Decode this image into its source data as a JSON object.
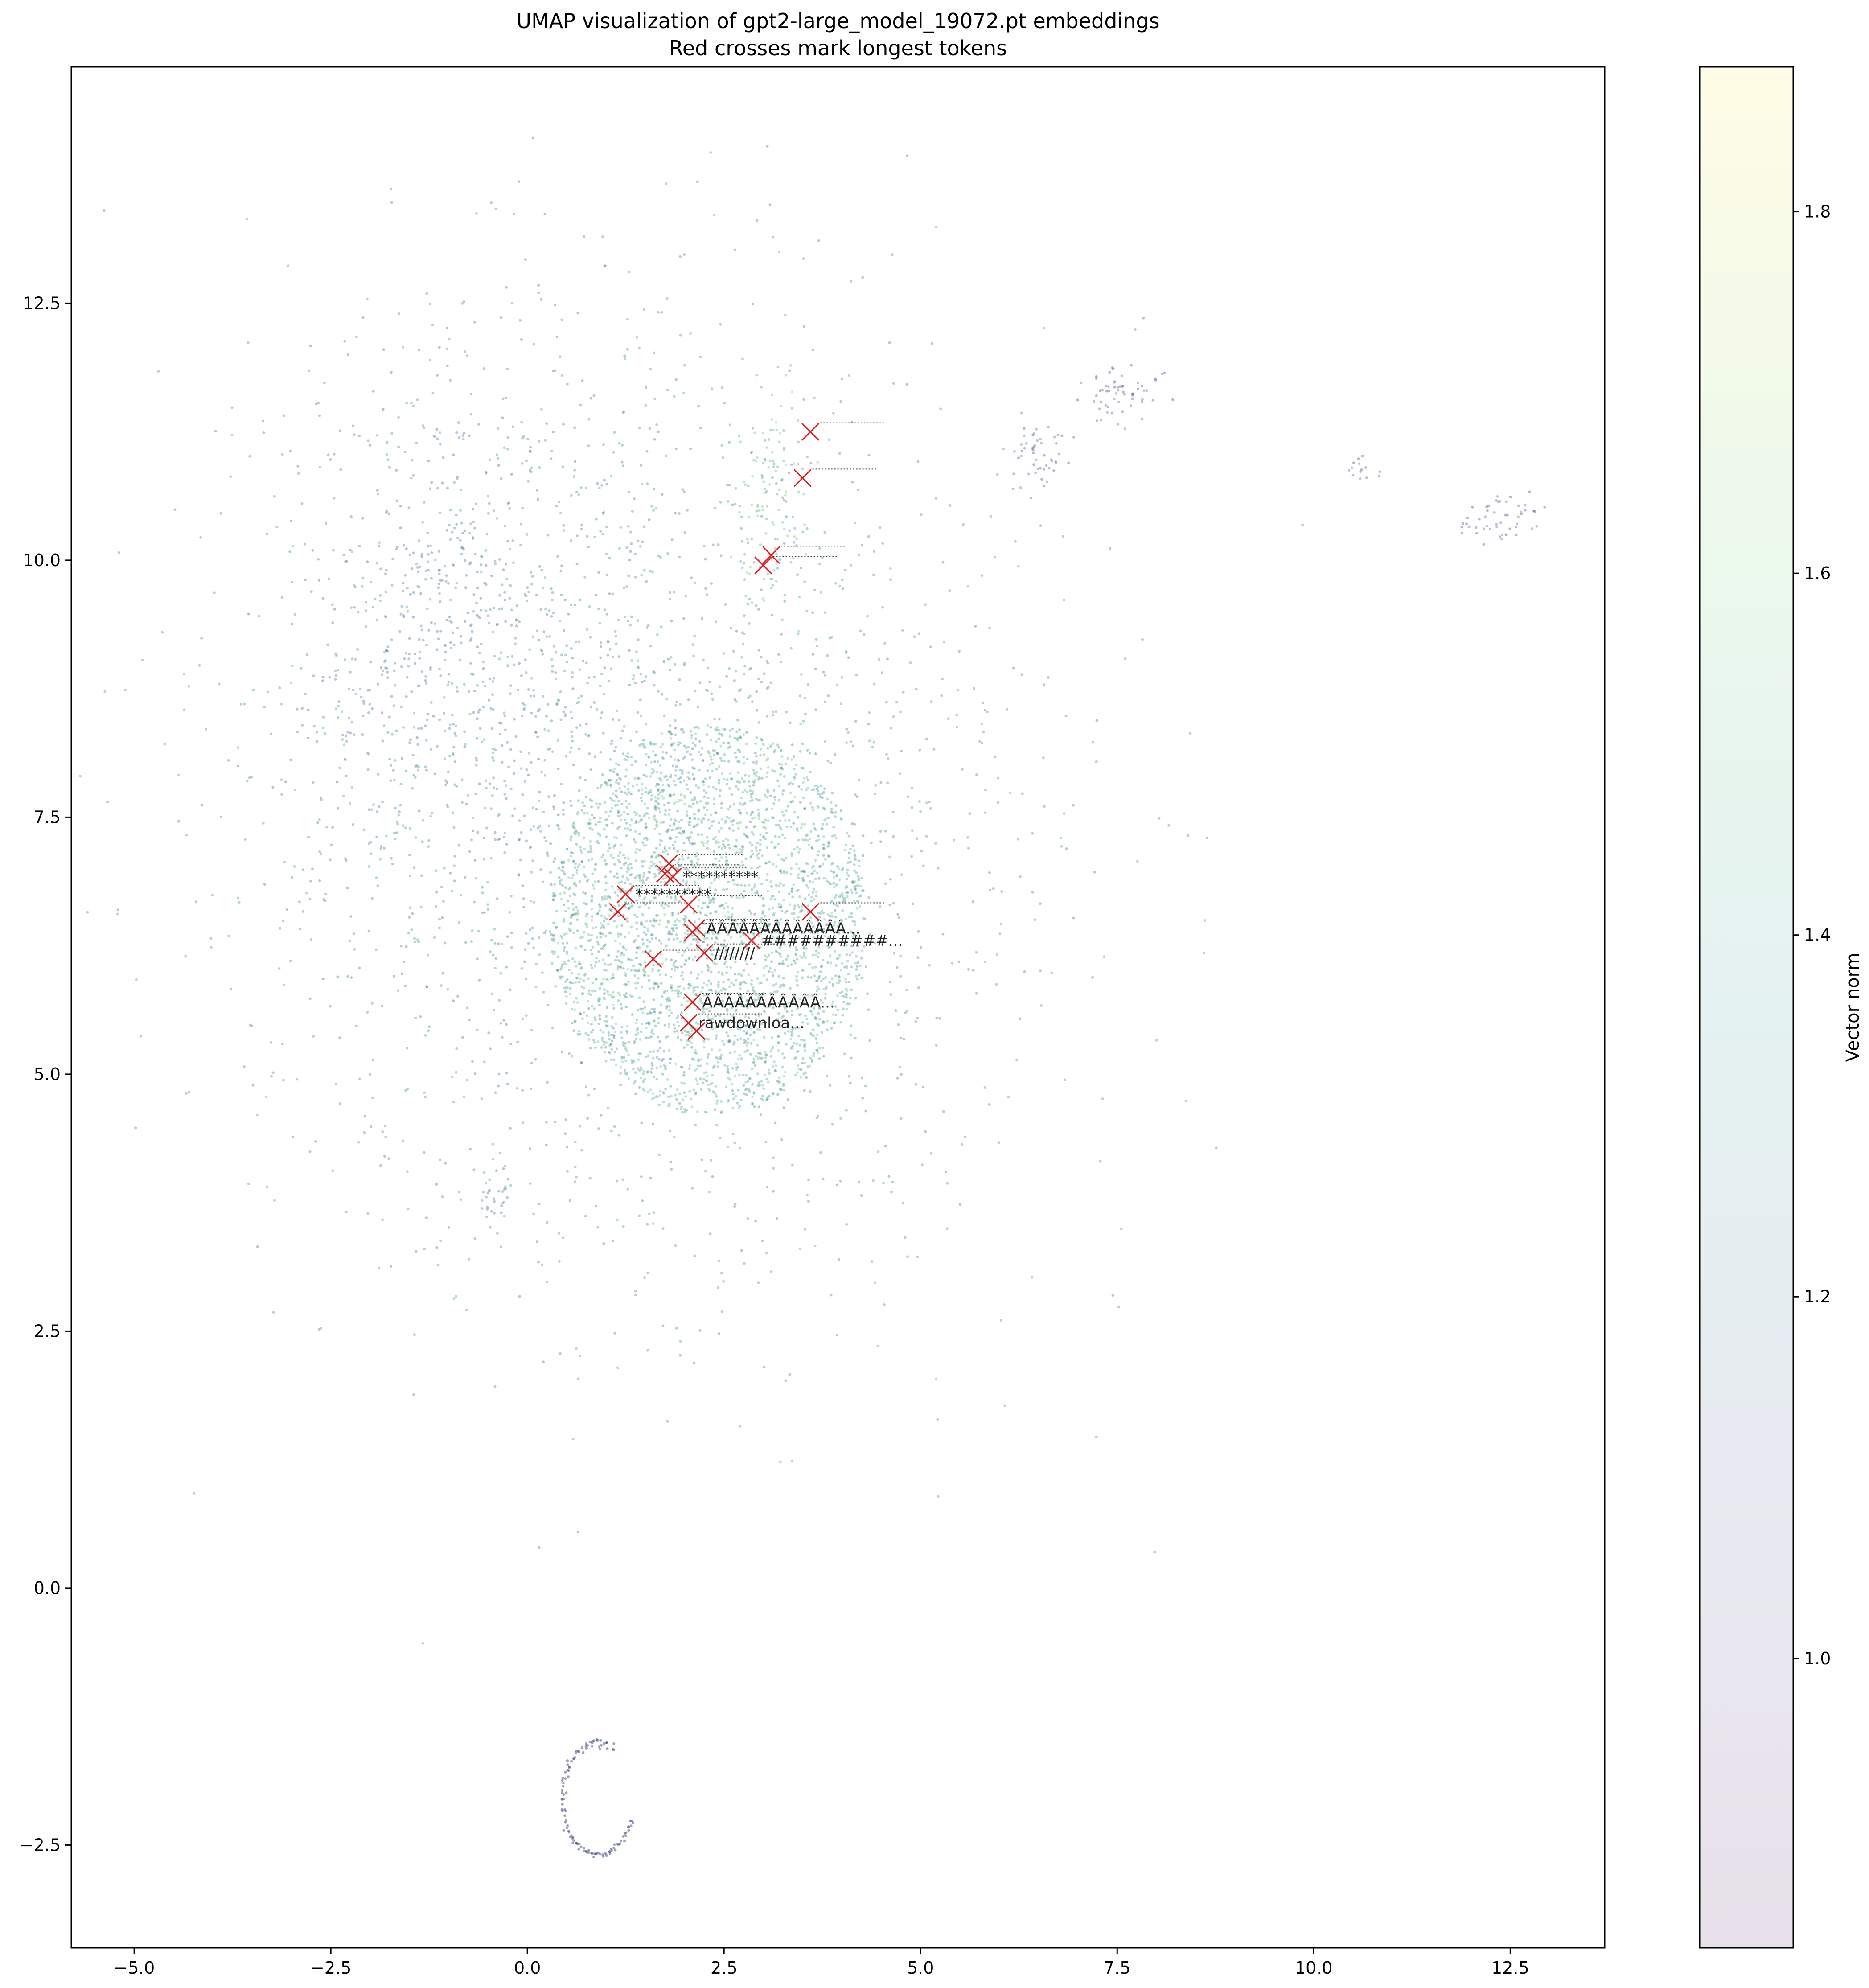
{
  "chart_data": {
    "type": "scatter",
    "title": "UMAP visualization of gpt2-large_model_19072.pt embeddings",
    "subtitle": "Red crosses mark longest tokens",
    "xlim": [
      -5.8,
      13.7
    ],
    "ylim": [
      -3.5,
      14.8
    ],
    "x_ticks": [
      "−5.0",
      "−2.5",
      "0.0",
      "2.5",
      "5.0",
      "7.5",
      "10.0",
      "12.5"
    ],
    "x_tick_values": [
      -5.0,
      -2.5,
      0.0,
      2.5,
      5.0,
      7.5,
      10.0,
      12.5
    ],
    "y_ticks": [
      "−2.5",
      "0.0",
      "2.5",
      "5.0",
      "7.5",
      "10.0",
      "12.5"
    ],
    "y_tick_values": [
      -2.5,
      0.0,
      2.5,
      5.0,
      7.5,
      10.0,
      12.5
    ],
    "colorbar": {
      "label": "Vector norm",
      "range": [
        0.84,
        1.88
      ],
      "ticks": [
        "1.0",
        "1.2",
        "1.4",
        "1.6",
        "1.8"
      ],
      "tick_values": [
        1.0,
        1.2,
        1.4,
        1.6,
        1.8
      ],
      "colormap": [
        "#440154",
        "#3b528b",
        "#21918c",
        "#5ec962",
        "#fde725"
      ]
    },
    "clusters": [
      {
        "cx": 2.3,
        "cy": 6.5,
        "rx": 2.0,
        "ry": 1.9,
        "n": 2600,
        "norm": 1.45
      },
      {
        "cx": 1.5,
        "cy": 7.5,
        "rx": 4.6,
        "ry": 4.3,
        "n": 2200,
        "norm": 1.25
      },
      {
        "cx": -0.8,
        "cy": 9.3,
        "rx": 2.2,
        "ry": 2.6,
        "n": 700,
        "norm": 1.18
      },
      {
        "cx": 3.1,
        "cy": 10.5,
        "rx": 0.4,
        "ry": 1.0,
        "n": 120,
        "norm": 1.5
      },
      {
        "cx": 12.4,
        "cy": 10.4,
        "rx": 0.45,
        "ry": 0.22,
        "n": 50,
        "norm": 1.05
      },
      {
        "cx": 7.5,
        "cy": 11.6,
        "rx": 0.45,
        "ry": 0.25,
        "n": 60,
        "norm": 1.05
      },
      {
        "cx": 6.5,
        "cy": 11.0,
        "rx": 0.4,
        "ry": 0.3,
        "n": 50,
        "norm": 1.08
      },
      {
        "cx": 10.6,
        "cy": 10.9,
        "rx": 0.25,
        "ry": 0.15,
        "n": 14,
        "norm": 1.1
      },
      {
        "cx": -0.4,
        "cy": 3.8,
        "rx": 0.3,
        "ry": 0.3,
        "n": 30,
        "norm": 1.2
      }
    ],
    "ring": {
      "cx": 0.9,
      "cy": -2.05,
      "rx": 0.45,
      "ry": 0.55,
      "n": 120,
      "norm": 1.05
    },
    "longest_tokens": [
      {
        "x": 3.6,
        "y": 11.25,
        "label": ""
      },
      {
        "x": 3.5,
        "y": 10.8,
        "label": ""
      },
      {
        "x": 3.1,
        "y": 10.05,
        "label": ""
      },
      {
        "x": 3.0,
        "y": 9.95,
        "label": ""
      },
      {
        "x": 1.8,
        "y": 7.05,
        "label": ""
      },
      {
        "x": 1.85,
        "y": 6.92,
        "label": "**********"
      },
      {
        "x": 1.75,
        "y": 6.95,
        "label": ""
      },
      {
        "x": 1.25,
        "y": 6.75,
        "label": "**********"
      },
      {
        "x": 1.15,
        "y": 6.58,
        "label": ""
      },
      {
        "x": 2.05,
        "y": 6.65,
        "label": ""
      },
      {
        "x": 3.6,
        "y": 6.58,
        "label": ""
      },
      {
        "x": 2.15,
        "y": 6.42,
        "label": "ÂÂÂÂÂÂÂÂÂÂÂÂÂ..."
      },
      {
        "x": 2.1,
        "y": 6.38,
        "label": ""
      },
      {
        "x": 2.85,
        "y": 6.3,
        "label": "##########..."
      },
      {
        "x": 2.25,
        "y": 6.18,
        "label": "////////"
      },
      {
        "x": 1.6,
        "y": 6.12,
        "label": ""
      },
      {
        "x": 2.1,
        "y": 5.7,
        "label": "ÂÂÂÂÂÂÂÂÂÂÂ..."
      },
      {
        "x": 2.05,
        "y": 5.5,
        "label": "rawdownloa..."
      },
      {
        "x": 2.15,
        "y": 5.42,
        "label": ""
      }
    ]
  }
}
